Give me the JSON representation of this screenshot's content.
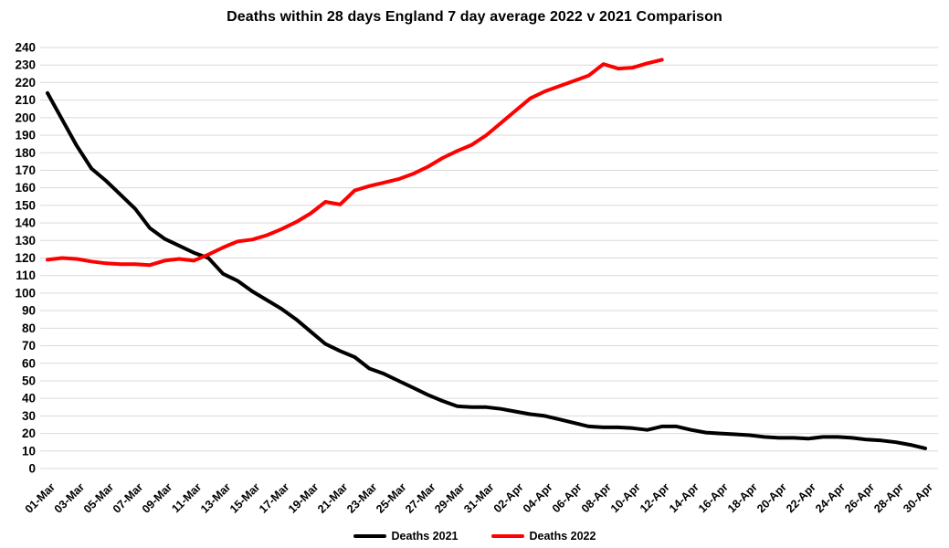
{
  "chart_data": {
    "type": "line",
    "title": "Deaths within 28 days England 7 day average 2022 v 2021 Comparison",
    "xlabel": "",
    "ylabel": "",
    "ylim": [
      0,
      240
    ],
    "y_tick_step": 10,
    "grid": "horizontal",
    "gridline_color": "#d9d9d9",
    "legend_position": "bottom",
    "x_label_every": 2,
    "x": [
      "01-Mar",
      "02-Mar",
      "03-Mar",
      "04-Mar",
      "05-Mar",
      "06-Mar",
      "07-Mar",
      "08-Mar",
      "09-Mar",
      "10-Mar",
      "11-Mar",
      "12-Mar",
      "13-Mar",
      "14-Mar",
      "15-Mar",
      "16-Mar",
      "17-Mar",
      "18-Mar",
      "19-Mar",
      "20-Mar",
      "21-Mar",
      "22-Mar",
      "23-Mar",
      "24-Mar",
      "25-Mar",
      "26-Mar",
      "27-Mar",
      "28-Mar",
      "29-Mar",
      "30-Mar",
      "31-Mar",
      "01-Apr",
      "02-Apr",
      "03-Apr",
      "04-Apr",
      "05-Apr",
      "06-Apr",
      "07-Apr",
      "08-Apr",
      "09-Apr",
      "10-Apr",
      "11-Apr",
      "12-Apr",
      "13-Apr",
      "14-Apr",
      "15-Apr",
      "16-Apr",
      "17-Apr",
      "18-Apr",
      "19-Apr",
      "20-Apr",
      "21-Apr",
      "22-Apr",
      "23-Apr",
      "24-Apr",
      "25-Apr",
      "26-Apr",
      "27-Apr",
      "28-Apr",
      "29-Apr",
      "30-Apr"
    ],
    "series": [
      {
        "name": "Deaths 2021",
        "color": "#000000",
        "values": [
          214,
          199,
          184,
          171,
          164,
          156,
          148,
          137,
          131,
          127,
          123,
          120,
          111,
          107,
          101,
          96,
          91,
          85,
          78,
          71,
          67,
          63.5,
          57,
          54,
          50,
          46,
          42,
          38.5,
          35.5,
          35,
          35,
          34,
          32.5,
          31,
          30,
          28,
          26,
          24,
          23.5,
          23.5,
          23,
          22,
          24,
          24,
          22,
          20.5,
          20,
          19.5,
          19,
          18,
          17.5,
          17.5,
          17,
          18,
          18,
          17.5,
          16.5,
          16,
          15,
          13.5,
          11.5
        ]
      },
      {
        "name": "Deaths 2022",
        "color": "#ff0000",
        "values": [
          119,
          120,
          119.5,
          118,
          117,
          116.5,
          116.5,
          116,
          118.5,
          119.5,
          118.5,
          122,
          126,
          129.5,
          130.5,
          133,
          136.5,
          140.5,
          145.5,
          152,
          150.5,
          158.5,
          161,
          163,
          165,
          168,
          172,
          177,
          181,
          184.5,
          190,
          197,
          204,
          211,
          215,
          218,
          221,
          224,
          230.5,
          228,
          228.5,
          231,
          233
        ]
      }
    ]
  }
}
